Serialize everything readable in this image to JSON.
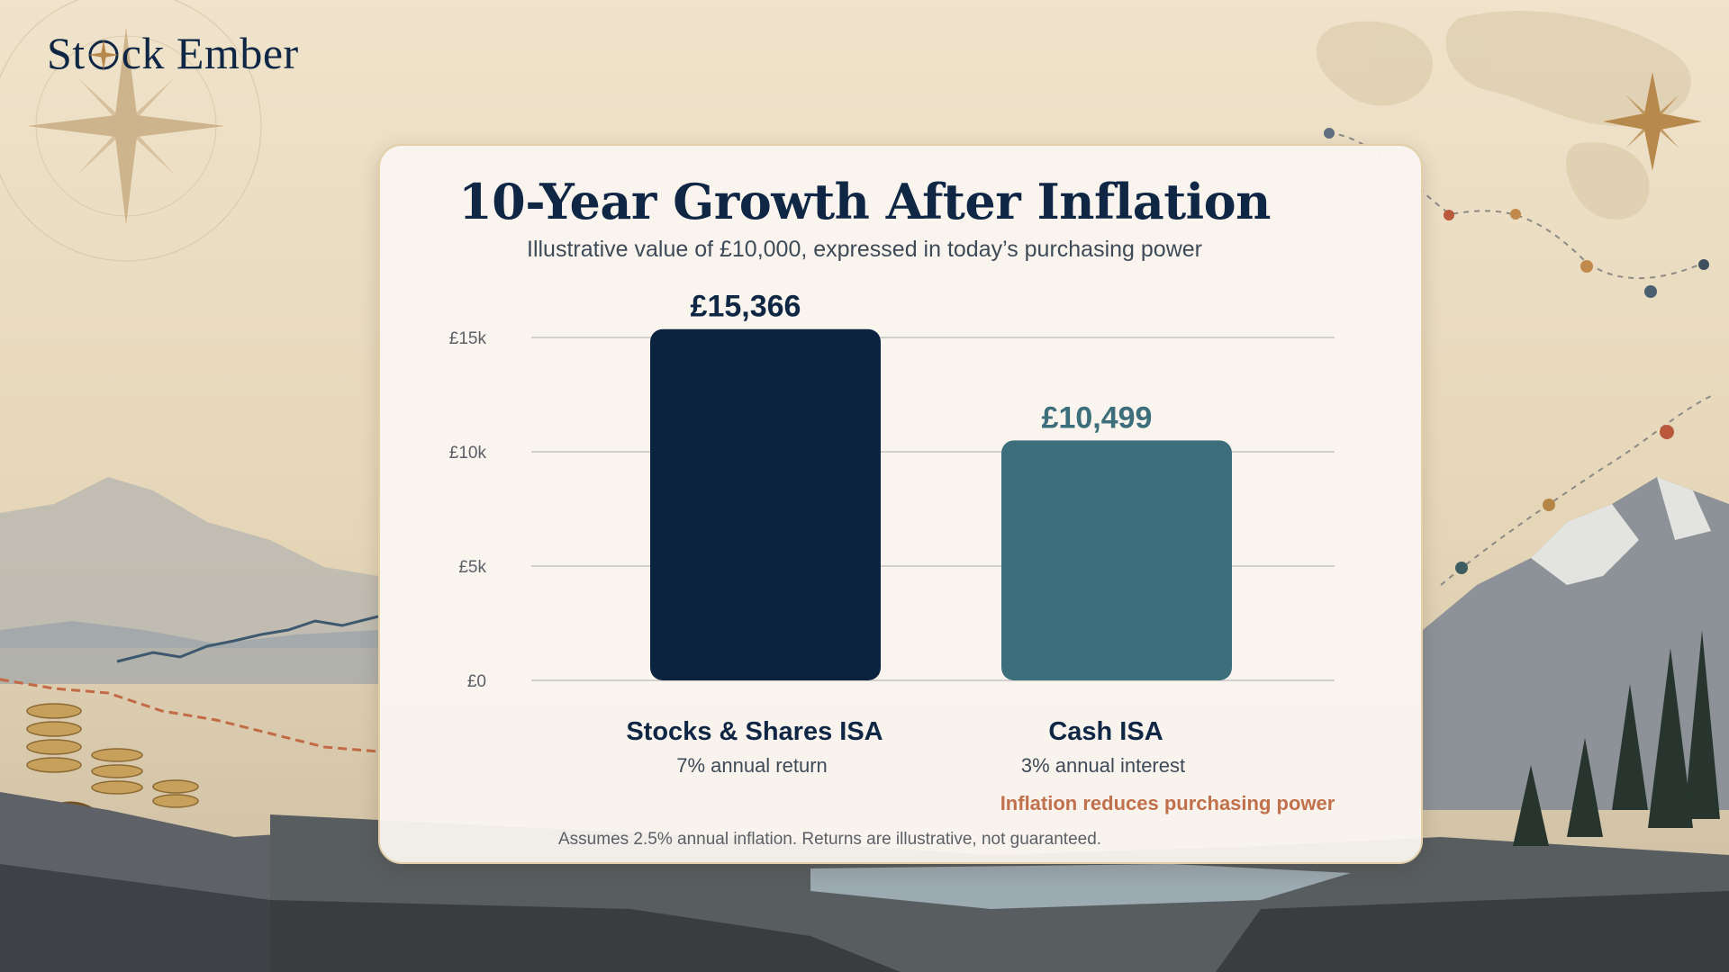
{
  "brand": {
    "name_part1": "St",
    "name_part2": "ck Ember"
  },
  "colors": {
    "stocks_bar": "#0c2340",
    "cash_bar": "#3d6e7c",
    "cash_value_label": "#3d6e7c",
    "inflation_note": "#c0714b",
    "grid": "#d2d0cb"
  },
  "icons": {
    "logo_mark": "compass-icon"
  },
  "footnote": "Assumes 2.5% annual inflation. Returns are illustrative, not guaranteed.",
  "inflation_note": "Inflation reduces purchasing power",
  "chart_data": {
    "type": "bar",
    "title": "10-Year Growth After Inflation",
    "subtitle": "Illustrative value of £10,000, expressed in today’s purchasing power",
    "categories": [
      "Stocks & Shares ISA",
      "Cash ISA"
    ],
    "category_details": [
      "7% annual return",
      "3% annual interest"
    ],
    "values": [
      15366,
      10499
    ],
    "value_labels": [
      "£15,366",
      "£10,499"
    ],
    "ylim": [
      0,
      15000
    ],
    "yticks": [
      0,
      5000,
      10000,
      15000
    ],
    "ytick_labels": [
      "£0",
      "£5k",
      "£10k",
      "£15k"
    ],
    "grid": true,
    "legend": "none",
    "xlabel": "",
    "ylabel": ""
  }
}
